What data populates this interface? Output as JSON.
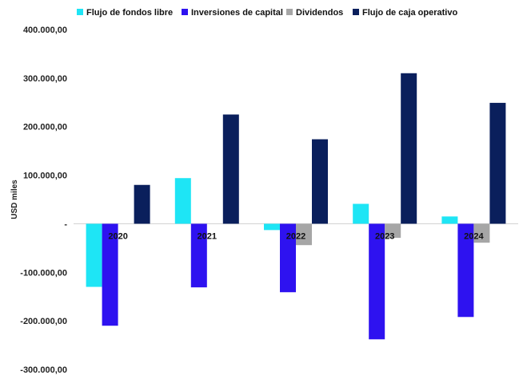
{
  "chart_data": {
    "type": "bar",
    "title": "",
    "xlabel": "",
    "ylabel": "USD miles",
    "categories": [
      "2020",
      "2021",
      "2022",
      "2023",
      "2024"
    ],
    "ylim": [
      -300000,
      400000
    ],
    "yticks": [
      {
        "value": 400000,
        "label": "400.000,00"
      },
      {
        "value": 300000,
        "label": "300.000,00"
      },
      {
        "value": 200000,
        "label": "200.000,00"
      },
      {
        "value": 100000,
        "label": "100.000,00"
      },
      {
        "value": 0,
        "label": "-"
      },
      {
        "value": -100000,
        "label": "-100.000,00"
      },
      {
        "value": -200000,
        "label": "-200.000,00"
      },
      {
        "value": -300000,
        "label": "-300.000,00"
      }
    ],
    "grid": false,
    "legend_position": "top",
    "series": [
      {
        "name": "Flujo de fondos libre",
        "color": "#1ee5f5",
        "values": [
          -130000,
          94000,
          -13000,
          41000,
          15000
        ]
      },
      {
        "name": "Inversiones de capital",
        "color": "#2e12f0",
        "values": [
          -210000,
          -131000,
          -141000,
          -238000,
          -192000
        ]
      },
      {
        "name": "Dividendos",
        "color": "#a6a6a6",
        "values": [
          0,
          0,
          -44000,
          -29000,
          -39000
        ]
      },
      {
        "name": "Flujo de caja operativo",
        "color": "#0a1f5c",
        "values": [
          80000,
          225000,
          174000,
          310000,
          249000
        ]
      }
    ]
  }
}
